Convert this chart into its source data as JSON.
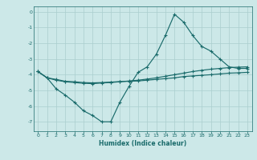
{
  "xlabel": "Humidex (Indice chaleur)",
  "background_color": "#cce8e8",
  "grid_color": "#aacece",
  "line_color": "#1a6b6b",
  "xlim": [
    -0.5,
    23.5
  ],
  "ylim": [
    -7.6,
    0.35
  ],
  "xticks": [
    0,
    1,
    2,
    3,
    4,
    5,
    6,
    7,
    8,
    9,
    10,
    11,
    12,
    13,
    14,
    15,
    16,
    17,
    18,
    19,
    20,
    21,
    22,
    23
  ],
  "yticks": [
    0,
    -1,
    -2,
    -3,
    -4,
    -5,
    -6,
    -7
  ],
  "line1_x": [
    0,
    1,
    2,
    3,
    4,
    5,
    6,
    7,
    8,
    9,
    10,
    11,
    12,
    13,
    14,
    15,
    16,
    17,
    18,
    19,
    20,
    21,
    22,
    23
  ],
  "line1_y": [
    -3.8,
    -4.2,
    -4.9,
    -5.3,
    -5.75,
    -6.3,
    -6.6,
    -7.0,
    -7.0,
    -5.75,
    -4.75,
    -3.85,
    -3.5,
    -2.7,
    -1.5,
    -0.15,
    -0.65,
    -1.5,
    -2.2,
    -2.5,
    -3.0,
    -3.5,
    -3.6,
    -3.6
  ],
  "line2_x": [
    0,
    1,
    2,
    3,
    4,
    5,
    6,
    7,
    8,
    9,
    10,
    11,
    12,
    13,
    14,
    15,
    16,
    17,
    18,
    19,
    20,
    21,
    22,
    23
  ],
  "line2_y": [
    -3.8,
    -4.2,
    -4.35,
    -4.45,
    -4.5,
    -4.55,
    -4.57,
    -4.53,
    -4.5,
    -4.45,
    -4.4,
    -4.35,
    -4.28,
    -4.2,
    -4.1,
    -4.0,
    -3.9,
    -3.8,
    -3.72,
    -3.65,
    -3.6,
    -3.55,
    -3.52,
    -3.5
  ],
  "line3_x": [
    0,
    1,
    2,
    3,
    4,
    5,
    6,
    7,
    8,
    9,
    10,
    11,
    12,
    13,
    14,
    15,
    16,
    17,
    18,
    19,
    20,
    21,
    22,
    23
  ],
  "line3_y": [
    -3.8,
    -4.2,
    -4.3,
    -4.42,
    -4.45,
    -4.5,
    -4.52,
    -4.5,
    -4.47,
    -4.44,
    -4.42,
    -4.4,
    -4.35,
    -4.3,
    -4.25,
    -4.2,
    -4.12,
    -4.08,
    -4.04,
    -4.0,
    -3.95,
    -3.9,
    -3.88,
    -3.85
  ]
}
